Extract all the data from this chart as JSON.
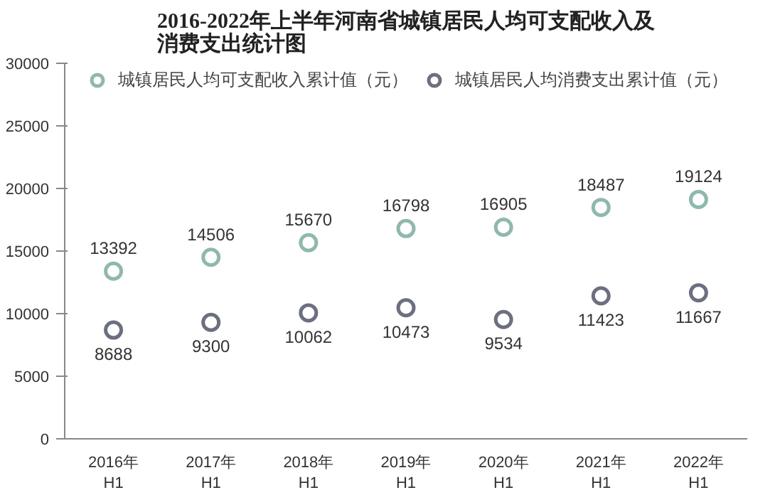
{
  "chart_data": {
    "type": "scatter",
    "title": "2016-2022年上半年河南省城镇居民人均可支配收入及消费支出统计图",
    "categories": [
      "2016年\nH1",
      "2017年\nH1",
      "2018年\nH1",
      "2019年\nH1",
      "2020年\nH1",
      "2021年\nH1",
      "2022年\nH1"
    ],
    "series": [
      {
        "name": "城镇居民人均可支配收入累计值（元）",
        "color": "#8fb8ae",
        "values": [
          13392,
          14506,
          15670,
          16798,
          16905,
          18487,
          19124
        ]
      },
      {
        "name": "城镇居民人均消费支出累计值（元）",
        "color": "#6b6f80",
        "values": [
          8688,
          9300,
          10062,
          10473,
          9534,
          11423,
          11667
        ]
      }
    ],
    "ylim": [
      0,
      30000
    ],
    "yticks": [
      0,
      5000,
      10000,
      15000,
      20000,
      25000,
      30000
    ],
    "data_labels": true,
    "legend": "top",
    "marker": "circle",
    "grid": false
  }
}
